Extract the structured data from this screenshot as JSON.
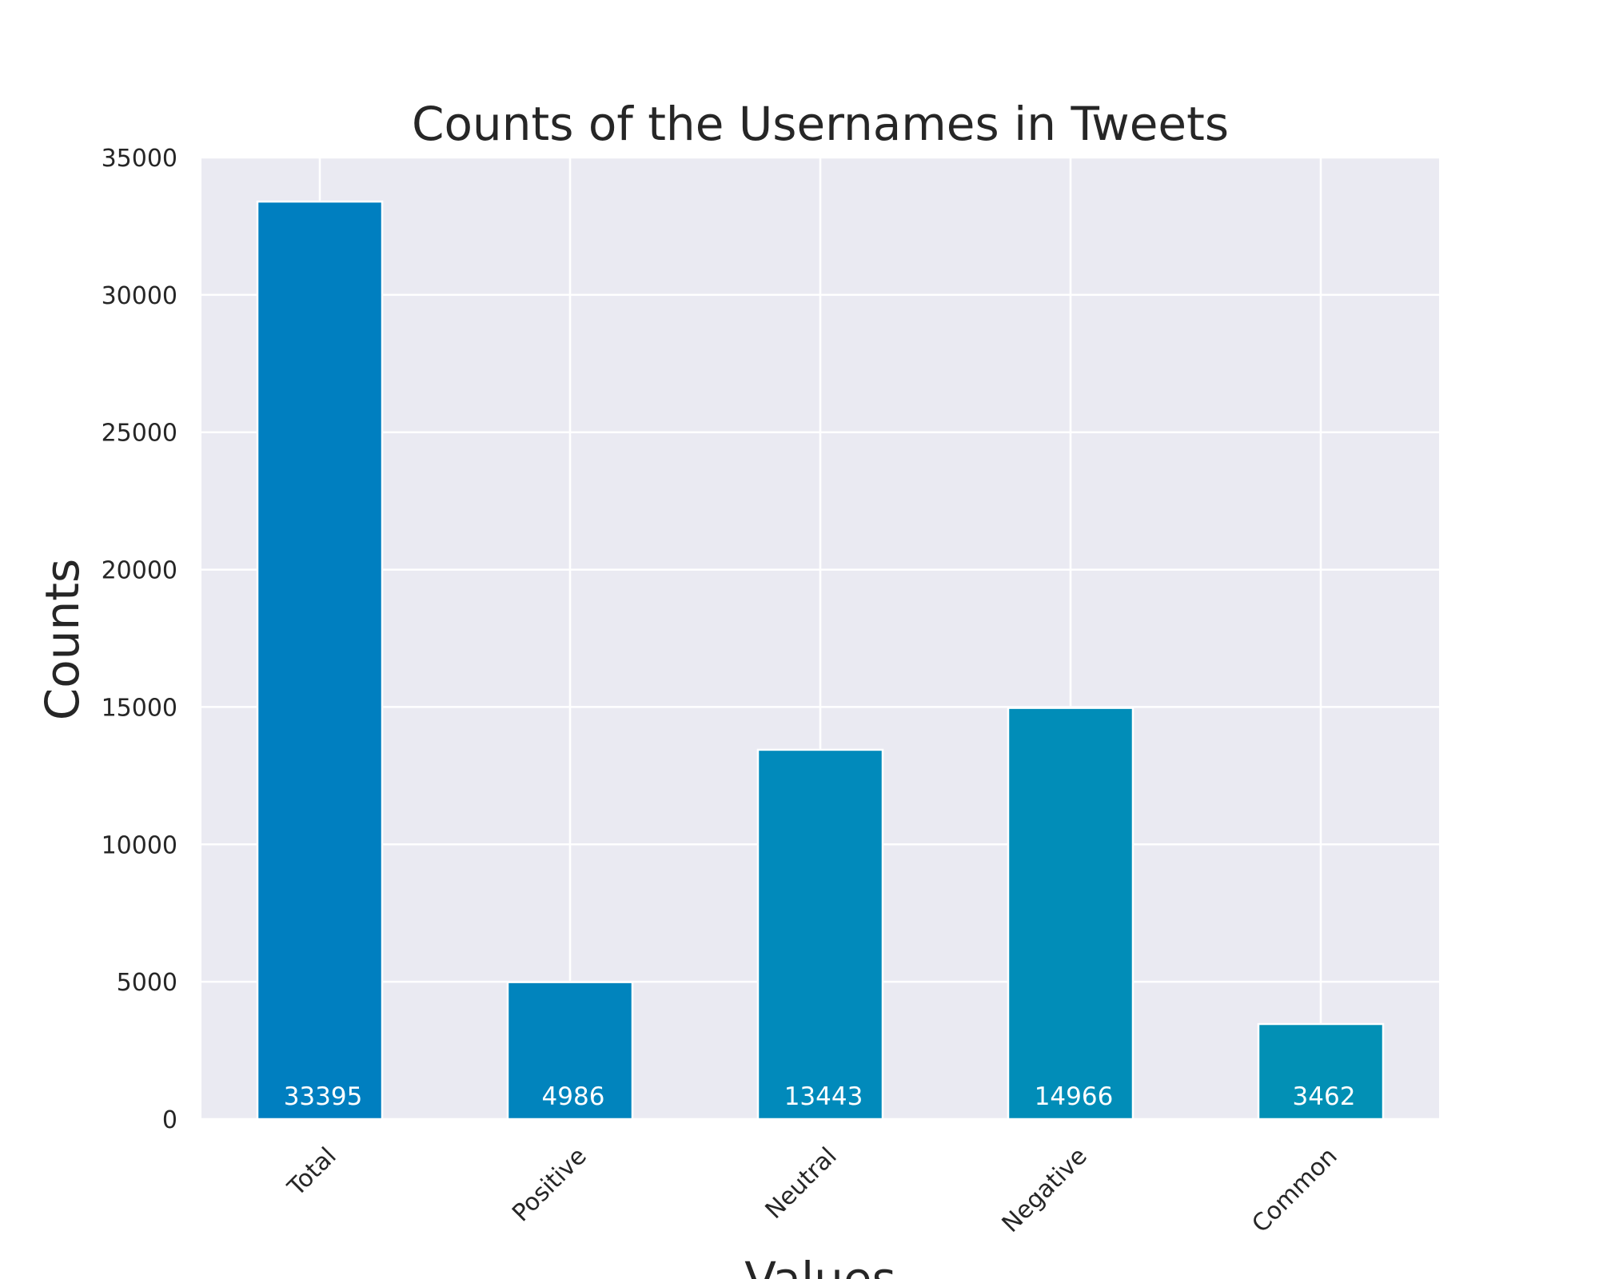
{
  "chart_data": {
    "type": "bar",
    "title": "Counts of the Usernames in Tweets",
    "xlabel": "Values",
    "ylabel": "Counts",
    "categories": [
      "Total",
      "Positive",
      "Neutral",
      "Negative",
      "Common"
    ],
    "values": [
      33395,
      4986,
      13443,
      14966,
      3462
    ],
    "data_labels": [
      "33395",
      "4986",
      "13443",
      "14966",
      "3462"
    ],
    "ylim": [
      0,
      35000
    ],
    "yticks": [
      0,
      5000,
      10000,
      15000,
      20000,
      25000,
      30000,
      35000
    ],
    "ytick_labels": [
      "0",
      "5000",
      "10000",
      "15000",
      "20000",
      "25000",
      "30000",
      "35000"
    ],
    "grid": true,
    "bar_colors": [
      "#007fc0",
      "#0184bd",
      "#018abb",
      "#018db8",
      "#0290b5"
    ],
    "background_color": "#eaeaf2",
    "grid_color": "#ffffff"
  }
}
